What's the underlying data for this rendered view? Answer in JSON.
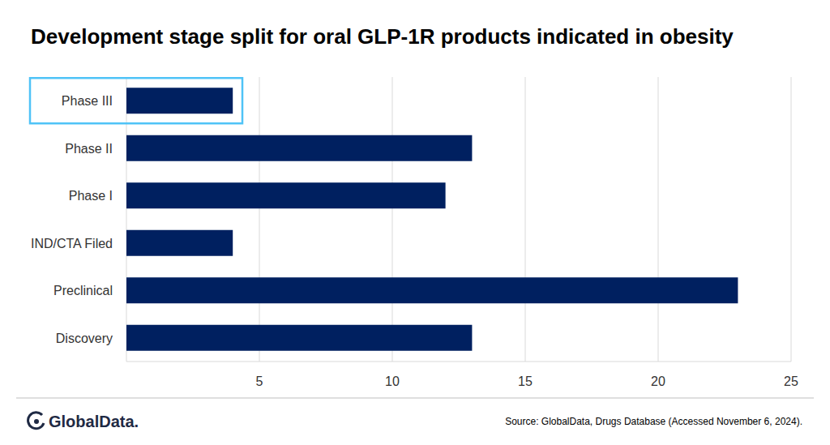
{
  "chart_data": {
    "type": "bar",
    "title": "Development stage split for oral GLP-1R products indicated in obesity",
    "categories": [
      "Phase III",
      "Phase II",
      "Phase I",
      "IND/CTA Filed",
      "Preclinical",
      "Discovery"
    ],
    "values": [
      4,
      13,
      12,
      4,
      23,
      13
    ],
    "color": "#002060",
    "orientation": "horizontal",
    "xlim": [
      0,
      25
    ],
    "xticks": [
      5,
      10,
      15,
      20,
      25
    ],
    "grid": true,
    "source": "Source: GlobalData, Drugs Database (Accessed November 6, 2024).",
    "brand": "GlobalData."
  }
}
